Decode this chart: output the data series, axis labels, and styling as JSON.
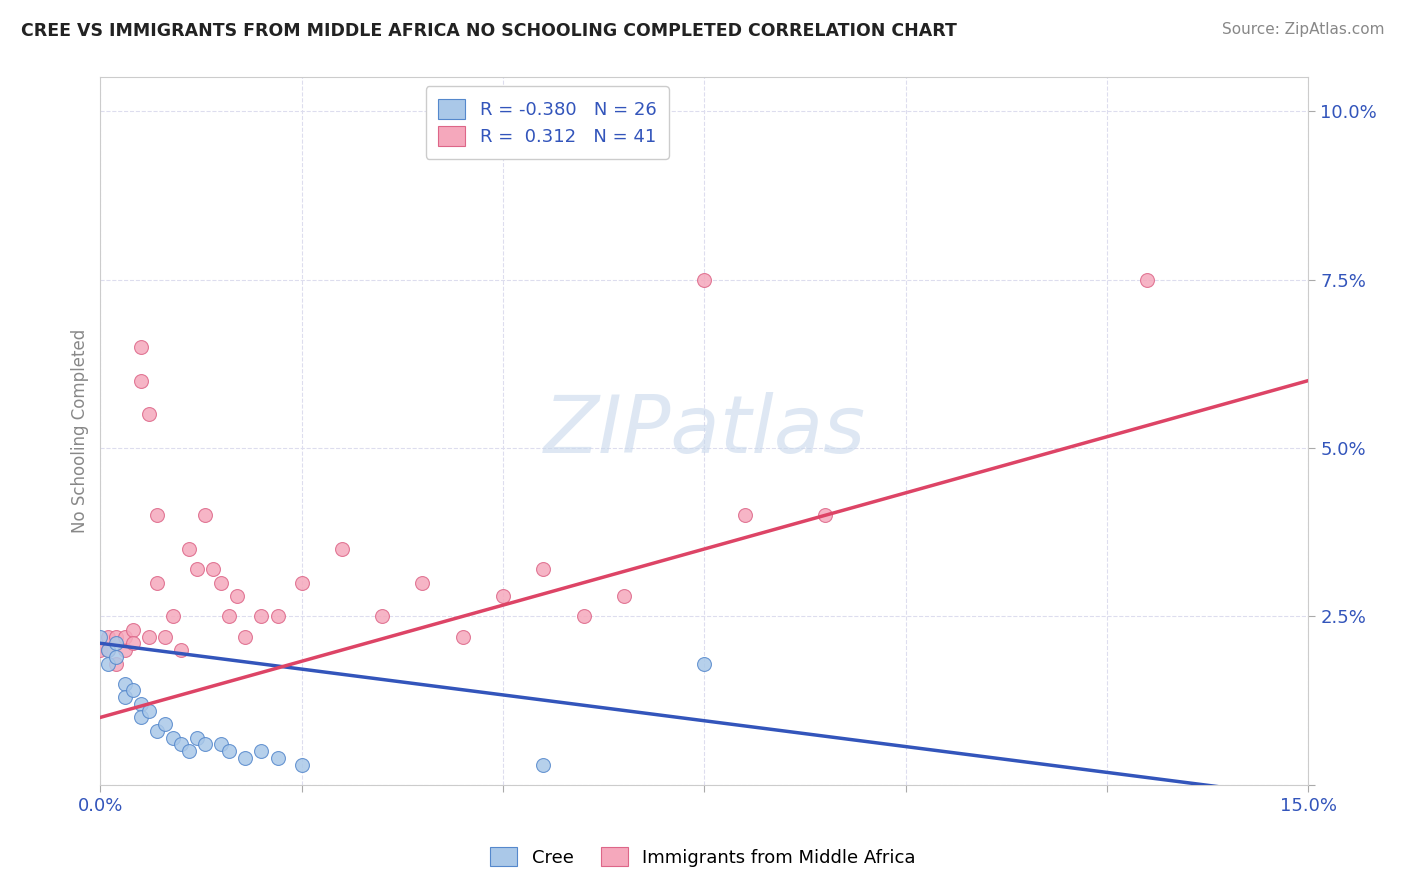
{
  "title": "CREE VS IMMIGRANTS FROM MIDDLE AFRICA NO SCHOOLING COMPLETED CORRELATION CHART",
  "source": "Source: ZipAtlas.com",
  "ylabel": "No Schooling Completed",
  "xlim": [
    0.0,
    0.15
  ],
  "ylim": [
    0.0,
    0.105
  ],
  "xtick_vals": [
    0.0,
    0.025,
    0.05,
    0.075,
    0.1,
    0.125,
    0.15
  ],
  "ytick_vals": [
    0.0,
    0.025,
    0.05,
    0.075,
    0.1
  ],
  "xtick_labels": [
    "0.0%",
    "",
    "",
    "",
    "",
    "",
    "15.0%"
  ],
  "ytick_labels": [
    "",
    "2.5%",
    "5.0%",
    "7.5%",
    "10.0%"
  ],
  "cree_color": "#aac8e8",
  "cree_edge_color": "#5588cc",
  "immigrants_color": "#f5a8bc",
  "immigrants_edge_color": "#dd6688",
  "cree_line_color": "#3355bb",
  "immigrants_line_color": "#dd4466",
  "R_cree": -0.38,
  "N_cree": 26,
  "R_immigrants": 0.312,
  "N_immigrants": 41,
  "watermark": "ZIPatlas",
  "background_color": "#ffffff",
  "grid_color": "#ddddee",
  "title_color": "#222222",
  "label_color": "#3355bb",
  "cree_x": [
    0.0,
    0.001,
    0.001,
    0.002,
    0.002,
    0.003,
    0.003,
    0.004,
    0.005,
    0.005,
    0.006,
    0.007,
    0.008,
    0.009,
    0.01,
    0.011,
    0.012,
    0.013,
    0.015,
    0.016,
    0.018,
    0.02,
    0.022,
    0.025,
    0.055,
    0.075
  ],
  "cree_y": [
    0.022,
    0.02,
    0.018,
    0.021,
    0.019,
    0.015,
    0.013,
    0.014,
    0.012,
    0.01,
    0.011,
    0.008,
    0.009,
    0.007,
    0.006,
    0.005,
    0.007,
    0.006,
    0.006,
    0.005,
    0.004,
    0.005,
    0.004,
    0.003,
    0.003,
    0.018
  ],
  "imm_x": [
    0.0,
    0.001,
    0.001,
    0.002,
    0.002,
    0.003,
    0.003,
    0.004,
    0.004,
    0.005,
    0.005,
    0.006,
    0.006,
    0.007,
    0.007,
    0.008,
    0.009,
    0.01,
    0.011,
    0.012,
    0.013,
    0.014,
    0.015,
    0.016,
    0.017,
    0.018,
    0.02,
    0.022,
    0.025,
    0.03,
    0.035,
    0.04,
    0.045,
    0.05,
    0.055,
    0.06,
    0.065,
    0.075,
    0.08,
    0.09,
    0.13
  ],
  "imm_y": [
    0.02,
    0.022,
    0.02,
    0.018,
    0.022,
    0.02,
    0.022,
    0.023,
    0.021,
    0.06,
    0.065,
    0.055,
    0.022,
    0.04,
    0.03,
    0.022,
    0.025,
    0.02,
    0.035,
    0.032,
    0.04,
    0.032,
    0.03,
    0.025,
    0.028,
    0.022,
    0.025,
    0.025,
    0.03,
    0.035,
    0.025,
    0.03,
    0.022,
    0.028,
    0.032,
    0.025,
    0.028,
    0.075,
    0.04,
    0.04,
    0.075
  ],
  "cree_line_x0": 0.0,
  "cree_line_y0": 0.021,
  "cree_line_x1": 0.15,
  "cree_line_y1": -0.002,
  "imm_line_x0": 0.0,
  "imm_line_y0": 0.01,
  "imm_line_x1": 0.15,
  "imm_line_y1": 0.06
}
